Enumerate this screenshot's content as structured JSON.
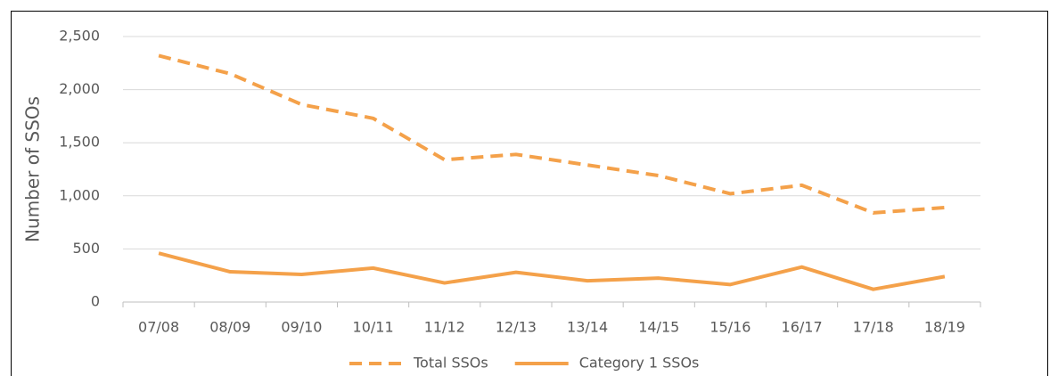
{
  "chart_data": {
    "type": "line",
    "ylabel": "Number of SSOs",
    "categories": [
      "07/08",
      "08/09",
      "09/10",
      "10/11",
      "11/12",
      "12/13",
      "13/14",
      "14/15",
      "15/16",
      "16/17",
      "17/18",
      "18/19"
    ],
    "series": [
      {
        "name": "Total SSOs",
        "color": "#f4a14a",
        "style": "dashed",
        "values": [
          2320,
          2150,
          1860,
          1730,
          1340,
          1390,
          1290,
          1190,
          1020,
          1100,
          840,
          890
        ]
      },
      {
        "name": "Category 1 SSOs",
        "color": "#f4a14a",
        "style": "solid",
        "values": [
          460,
          285,
          260,
          320,
          180,
          280,
          200,
          225,
          165,
          330,
          120,
          240
        ]
      }
    ],
    "ylim": [
      0,
      2500
    ],
    "yticks": [
      0,
      500,
      {
        "value": 1000,
        "label": "1,000"
      },
      {
        "value": 1500,
        "label": "1,500"
      },
      {
        "value": 2000,
        "label": "2,000"
      },
      {
        "value": 2500,
        "label": "2,500"
      }
    ],
    "grid": true,
    "legend": "bottom"
  }
}
